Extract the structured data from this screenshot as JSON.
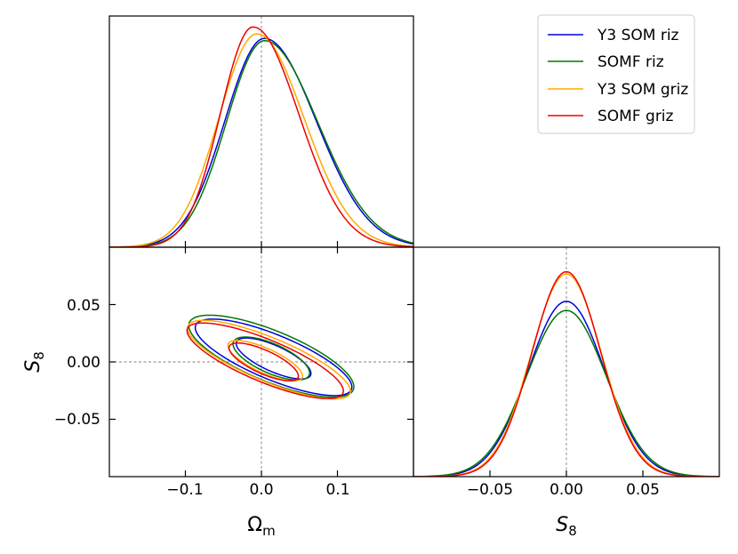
{
  "chart_data": {
    "type": "corner",
    "parameters": [
      "Ω_m",
      "S_8"
    ],
    "series": [
      {
        "name": "Y3 SOM riz",
        "color": "#0000dd",
        "omegam_1d": {
          "mean": 0.004,
          "sigma_left": 0.052,
          "sigma_right": 0.068,
          "peak": 0.91
        },
        "s8_1d": {
          "mean": 0.0,
          "sigma": 0.025,
          "peak": 0.77
        },
        "contour_inner": {
          "cx": 0.016,
          "cy": 0.003,
          "rx": 0.057,
          "ry": 0.021,
          "angle_deg": -33
        },
        "contour_outer": {
          "cx": 0.016,
          "cy": 0.004,
          "rx": 0.117,
          "ry": 0.037,
          "angle_deg": -30
        }
      },
      {
        "name": "SOMF riz",
        "color": "#007700",
        "omegam_1d": {
          "mean": 0.004,
          "sigma_left": 0.05,
          "sigma_right": 0.07,
          "peak": 0.9
        },
        "s8_1d": {
          "mean": 0.0,
          "sigma": 0.026,
          "peak": 0.73
        },
        "contour_inner": {
          "cx": 0.013,
          "cy": 0.003,
          "rx": 0.058,
          "ry": 0.024,
          "angle_deg": -33
        },
        "contour_outer": {
          "cx": 0.013,
          "cy": 0.005,
          "rx": 0.123,
          "ry": 0.042,
          "angle_deg": -30
        }
      },
      {
        "name": "Y3 SOM griz",
        "color": "#ffaa00",
        "omegam_1d": {
          "mean": -0.006,
          "sigma_left": 0.05,
          "sigma_right": 0.062,
          "peak": 0.93
        },
        "s8_1d": {
          "mean": 0.0,
          "sigma": 0.023,
          "peak": 0.89
        },
        "contour_inner": {
          "cx": 0.005,
          "cy": 0.001,
          "rx": 0.057,
          "ry": 0.02,
          "angle_deg": -33
        },
        "contour_outer": {
          "cx": 0.01,
          "cy": 0.002,
          "rx": 0.122,
          "ry": 0.036,
          "angle_deg": -30
        }
      },
      {
        "name": "SOMF griz",
        "color": "#ee0000",
        "omegam_1d": {
          "mean": -0.011,
          "sigma_left": 0.043,
          "sigma_right": 0.06,
          "peak": 0.96
        },
        "s8_1d": {
          "mean": 0.0,
          "sigma": 0.0225,
          "peak": 0.9
        },
        "contour_inner": {
          "cx": 0.003,
          "cy": 0.0,
          "rx": 0.053,
          "ry": 0.019,
          "angle_deg": -33
        },
        "contour_outer": {
          "cx": 0.005,
          "cy": 0.001,
          "rx": 0.117,
          "ry": 0.035,
          "angle_deg": -30
        }
      }
    ],
    "axes": {
      "omegam": {
        "range": [
          -0.2,
          0.2
        ],
        "ticks": [
          -0.1,
          0.0,
          0.1
        ],
        "tick_labels": [
          "−0.1",
          "0.0",
          "0.1"
        ]
      },
      "s8_xaxis": {
        "range": [
          -0.1,
          0.1
        ],
        "ticks": [
          -0.05,
          0.0,
          0.05
        ],
        "tick_labels": [
          "−0.05",
          "0.00",
          "0.05"
        ]
      },
      "s8_yaxis": {
        "range": [
          -0.1,
          0.1
        ],
        "ticks": [
          0.05,
          0.0,
          -0.05
        ],
        "tick_labels": [
          "0.05",
          "0.00",
          "−0.05"
        ]
      },
      "pdf_range": [
        0,
        1
      ]
    },
    "reference_lines": {
      "omegam": 0.0,
      "s8": 0.0
    },
    "labels": {
      "omegam_main": "Ω",
      "omegam_sub": "m",
      "s8_main": "S",
      "s8_sub": "8"
    },
    "legend": {
      "position": "top-right"
    },
    "title": "",
    "grid": false
  }
}
